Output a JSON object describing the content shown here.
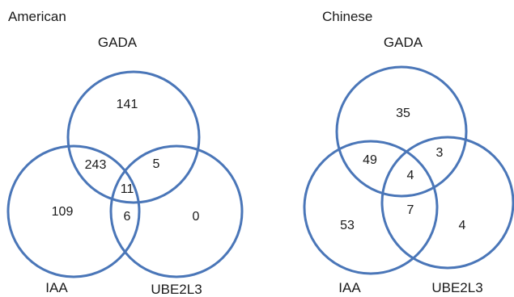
{
  "diagrams": [
    {
      "title": "American",
      "sets": [
        "GADA",
        "IAA",
        "UBE2L3"
      ],
      "regions": {
        "gada_only": "141",
        "iaa_only": "109",
        "ube2l3_only": "0",
        "gada_iaa": "243",
        "gada_ube2l3": "5",
        "iaa_ube2l3": "6",
        "all_three": "11"
      }
    },
    {
      "title": "Chinese",
      "sets": [
        "GADA",
        "IAA",
        "UBE2L3"
      ],
      "regions": {
        "gada_only": "35",
        "iaa_only": "53",
        "ube2l3_only": "4",
        "gada_iaa": "49",
        "gada_ube2l3": "3",
        "iaa_ube2l3": "7",
        "all_three": "4"
      }
    }
  ],
  "colors": {
    "circle_stroke": "#4a76b8",
    "text": "#1a1a1a"
  }
}
